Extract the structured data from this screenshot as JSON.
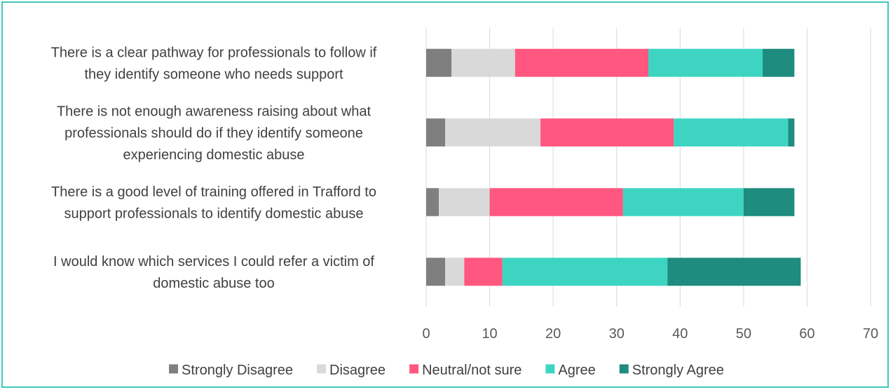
{
  "chart_data": {
    "type": "bar",
    "orientation": "horizontal",
    "stacked": true,
    "categories": [
      [
        "There is a clear pathway for professionals to follow if",
        "they identify someone who needs support"
      ],
      [
        "There is not enough awareness raising about what",
        "professionals should do if they identify someone",
        "experiencing domestic abuse"
      ],
      [
        "There is a good level of training offered in Trafford to",
        "support professionals to identify domestic abuse"
      ],
      [
        "I would know which services I could refer a victim of",
        "domestic abuse too"
      ]
    ],
    "series": [
      {
        "name": "Strongly Disagree",
        "color": "#7f7f7f",
        "values": [
          4,
          3,
          2,
          3
        ]
      },
      {
        "name": "Disagree",
        "color": "#d9d9d9",
        "values": [
          10,
          15,
          8,
          3
        ]
      },
      {
        "name": "Neutral/not sure",
        "color": "#ff577f",
        "values": [
          21,
          21,
          21,
          6
        ]
      },
      {
        "name": "Agree",
        "color": "#3dd5c2",
        "values": [
          18,
          18,
          19,
          26
        ]
      },
      {
        "name": "Strongly Agree",
        "color": "#1e8c7e",
        "values": [
          5,
          1,
          8,
          21
        ]
      }
    ],
    "xlim": [
      0,
      70
    ],
    "xticks": [
      0,
      10,
      20,
      30,
      40,
      50,
      60,
      70
    ],
    "grid": true,
    "legend_position": "bottom"
  }
}
